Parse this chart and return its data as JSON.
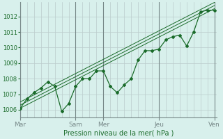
{
  "bg_color": "#d8f0ec",
  "grid_minor_color": "#bbcccc",
  "grid_major_color": "#778888",
  "line_color": "#1a6b2a",
  "title": "Pression niveau de la mer( hPa )",
  "ylim": [
    1005.5,
    1012.9
  ],
  "yticks": [
    1006,
    1007,
    1008,
    1009,
    1010,
    1011,
    1012
  ],
  "x_day_labels": [
    "Mar",
    "Sam",
    "Mer",
    "Jeu",
    "Ven"
  ],
  "x_day_positions": [
    0,
    48,
    72,
    120,
    168
  ],
  "total_hours": 170,
  "data_main": [
    [
      0,
      1006.1
    ],
    [
      6,
      1006.7
    ],
    [
      12,
      1007.1
    ],
    [
      18,
      1007.4
    ],
    [
      24,
      1007.8
    ],
    [
      30,
      1007.5
    ],
    [
      36,
      1005.9
    ],
    [
      42,
      1006.4
    ],
    [
      48,
      1007.5
    ],
    [
      54,
      1008.0
    ],
    [
      60,
      1008.0
    ],
    [
      66,
      1008.5
    ],
    [
      72,
      1008.5
    ],
    [
      78,
      1007.5
    ],
    [
      84,
      1007.1
    ],
    [
      90,
      1007.6
    ],
    [
      96,
      1008.0
    ],
    [
      102,
      1009.2
    ],
    [
      108,
      1009.8
    ],
    [
      114,
      1009.8
    ],
    [
      120,
      1009.9
    ],
    [
      126,
      1010.5
    ],
    [
      132,
      1010.7
    ],
    [
      138,
      1010.8
    ],
    [
      144,
      1010.1
    ],
    [
      150,
      1011.0
    ],
    [
      156,
      1012.3
    ],
    [
      162,
      1012.4
    ],
    [
      168,
      1012.4
    ]
  ],
  "trend_lines": [
    [
      [
        0,
        1006.1
      ],
      [
        168,
        1012.5
      ]
    ],
    [
      [
        0,
        1006.3
      ],
      [
        168,
        1012.7
      ]
    ],
    [
      [
        0,
        1006.5
      ],
      [
        168,
        1012.9
      ]
    ]
  ],
  "major_vlines": [
    0,
    48,
    72,
    120,
    168
  ],
  "minor_vlines": [
    6,
    12,
    18,
    24,
    30,
    36,
    42,
    54,
    60,
    66,
    78,
    84,
    90,
    96,
    102,
    108,
    114,
    126,
    132,
    138,
    144,
    150,
    156,
    162
  ]
}
